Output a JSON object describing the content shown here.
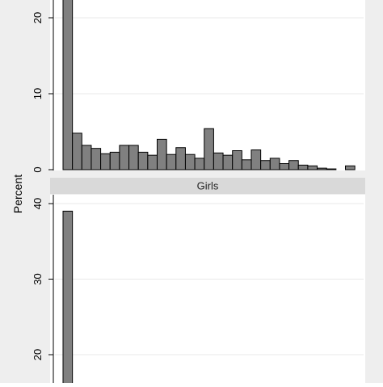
{
  "chart_data": [
    {
      "type": "bar",
      "panel": "upper",
      "ylabel": "Percent",
      "ylim": [
        0,
        23
      ],
      "yticks": [
        0,
        10,
        20
      ],
      "grid": true,
      "values": [
        23.5,
        4.8,
        3.2,
        2.8,
        2.1,
        2.3,
        3.2,
        3.2,
        2.3,
        1.9,
        4.0,
        2.0,
        2.9,
        2.0,
        1.5,
        5.4,
        2.2,
        1.9,
        2.5,
        1.3,
        2.6,
        1.2,
        1.5,
        0.8,
        1.2,
        0.6,
        0.5,
        0.2,
        0.1,
        0.0,
        0.5
      ]
    },
    {
      "type": "bar",
      "panel": "lower",
      "title": "Girls",
      "ylabel": "Percent",
      "ylim": [
        16,
        41
      ],
      "yticks": [
        20,
        30,
        40
      ],
      "grid": true,
      "values": [
        39.0
      ]
    }
  ],
  "colors": {
    "bar_fill": "#808080",
    "bar_stroke": "#000000",
    "strip": "#d9d9d9",
    "grid": "#e9e9e9",
    "outer": "#e8e8e8"
  }
}
